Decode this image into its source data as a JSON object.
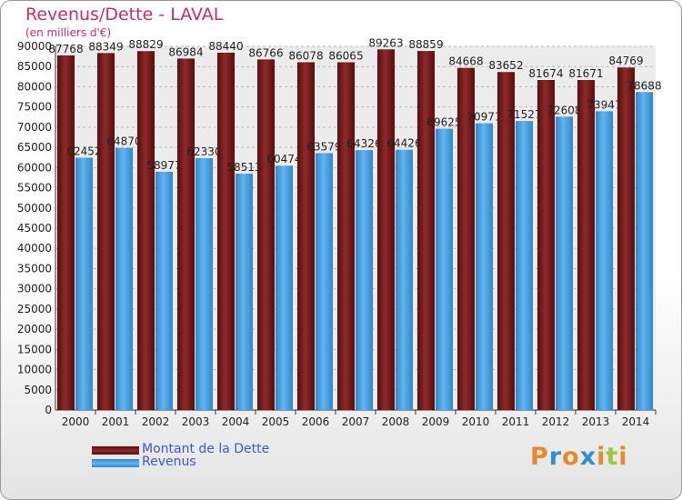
{
  "chart_data": {
    "type": "bar",
    "title": "Revenus/Dette - LAVAL",
    "subtitle": "(en milliers d'€)",
    "categories": [
      "2000",
      "2001",
      "2002",
      "2003",
      "2004",
      "2005",
      "2006",
      "2007",
      "2008",
      "2009",
      "2010",
      "2011",
      "2012",
      "2013",
      "2014"
    ],
    "series": [
      {
        "name": "Montant de la Dette",
        "color": "#7a1b1b",
        "values": [
          87768,
          88349,
          88829,
          86984,
          88440,
          86766,
          86078,
          86065,
          89263,
          88859,
          84668,
          83652,
          81674,
          81671,
          84769
        ]
      },
      {
        "name": "Revenus",
        "color": "#4fa3e3",
        "values": [
          62452,
          64870,
          58977,
          62330,
          58513,
          60474,
          63579,
          64326,
          64426,
          69625,
          70971,
          71527,
          72608,
          73947,
          78688
        ]
      }
    ],
    "ylim": [
      0,
      90000
    ],
    "yticks": [
      0,
      5000,
      10000,
      15000,
      20000,
      25000,
      30000,
      35000,
      40000,
      45000,
      50000,
      55000,
      60000,
      65000,
      70000,
      75000,
      80000,
      85000,
      90000
    ],
    "grid": true,
    "legend_position": "bottom-left"
  },
  "logo": {
    "letters": [
      "P",
      "r",
      "o",
      "x",
      "i",
      "t",
      "i"
    ],
    "colors": [
      "#e8892a",
      "#2f8fd0",
      "#e8892a",
      "#2f8fd0",
      "#e8892a",
      "#9ac93c",
      "#e8892a"
    ]
  }
}
